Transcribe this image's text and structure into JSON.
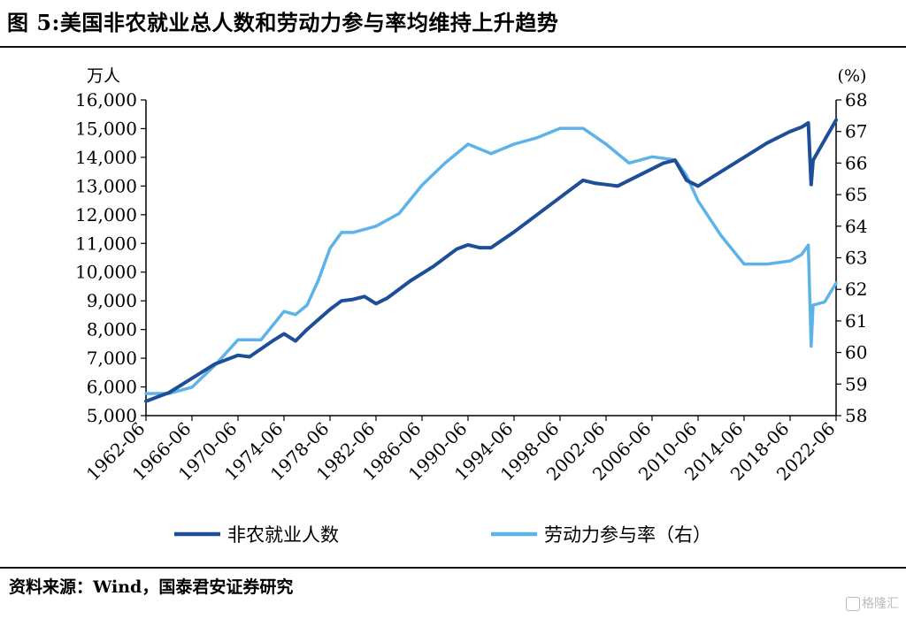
{
  "title": "图 5:美国非农就业总人数和劳动力参与率均维持上升趋势",
  "source": "资料来源：Wind，国泰君安证券研究",
  "watermark": "格隆汇",
  "chart_data": {
    "type": "line",
    "title": "图 5:美国非农就业总人数和劳动力参与率均维持上升趋势",
    "y_left": {
      "unit_label": "万人",
      "range": [
        5000,
        16000
      ],
      "ticks": [
        5000,
        6000,
        7000,
        8000,
        9000,
        10000,
        11000,
        12000,
        13000,
        14000,
        15000,
        16000
      ],
      "tick_labels": [
        "5,000",
        "6,000",
        "7,000",
        "8,000",
        "9,000",
        "10,000",
        "11,000",
        "12,000",
        "13,000",
        "14,000",
        "15,000",
        "16,000"
      ]
    },
    "y_right": {
      "unit_label": "(%)",
      "range": [
        58,
        68
      ],
      "ticks": [
        58,
        59,
        60,
        61,
        62,
        63,
        64,
        65,
        66,
        67,
        68
      ],
      "tick_labels": [
        "58",
        "59",
        "60",
        "61",
        "62",
        "63",
        "64",
        "65",
        "66",
        "67",
        "68"
      ]
    },
    "x_axis": {
      "range": [
        "1962-06",
        "2022-06"
      ],
      "tick_labels": [
        "1962-06",
        "1966-06",
        "1970-06",
        "1974-06",
        "1978-06",
        "1982-06",
        "1986-06",
        "1990-06",
        "1994-06",
        "1998-06",
        "2002-06",
        "2006-06",
        "2010-06",
        "2014-06",
        "2018-06",
        "2022-06"
      ]
    },
    "grid": false,
    "legend": "bottom",
    "series": [
      {
        "name": "非农就业人数",
        "axis": "left",
        "color": "#1f4e99",
        "x": [
          "1962-06",
          "1964-06",
          "1966-06",
          "1968-06",
          "1970-06",
          "1971-06",
          "1973-06",
          "1974-06",
          "1975-06",
          "1976-06",
          "1978-06",
          "1979-06",
          "1980-06",
          "1981-06",
          "1982-06",
          "1983-06",
          "1985-06",
          "1987-06",
          "1989-06",
          "1990-06",
          "1991-06",
          "1992-06",
          "1994-06",
          "1996-06",
          "1998-06",
          "2000-06",
          "2001-06",
          "2002-06",
          "2003-06",
          "2005-06",
          "2007-06",
          "2008-06",
          "2009-06",
          "2010-06",
          "2012-06",
          "2014-06",
          "2016-06",
          "2018-06",
          "2019-06",
          "2020-01",
          "2020-04",
          "2020-06",
          "2021-06",
          "2022-06"
        ],
        "values": [
          5500,
          5800,
          6300,
          6800,
          7100,
          7050,
          7600,
          7850,
          7600,
          8000,
          8700,
          9000,
          9050,
          9150,
          8900,
          9100,
          9700,
          10200,
          10800,
          10950,
          10850,
          10850,
          11400,
          12000,
          12600,
          13200,
          13100,
          13050,
          13000,
          13400,
          13800,
          13900,
          13200,
          13000,
          13500,
          14000,
          14500,
          14900,
          15050,
          15200,
          13050,
          13900,
          14600,
          15300
        ]
      },
      {
        "name": "劳动力参与率（右）",
        "axis": "right",
        "color": "#5db3e8",
        "x": [
          "1962-06",
          "1964-06",
          "1966-06",
          "1968-06",
          "1970-06",
          "1972-06",
          "1974-06",
          "1975-06",
          "1976-06",
          "1977-06",
          "1978-06",
          "1979-06",
          "1980-06",
          "1982-06",
          "1984-06",
          "1986-06",
          "1988-06",
          "1990-06",
          "1992-06",
          "1994-06",
          "1996-06",
          "1998-06",
          "2000-06",
          "2002-06",
          "2004-06",
          "2006-06",
          "2008-06",
          "2009-06",
          "2010-06",
          "2012-06",
          "2014-06",
          "2016-06",
          "2018-06",
          "2019-06",
          "2020-01",
          "2020-04",
          "2020-06",
          "2021-06",
          "2022-06"
        ],
        "values": [
          58.7,
          58.7,
          58.9,
          59.6,
          60.4,
          60.4,
          61.3,
          61.2,
          61.5,
          62.3,
          63.3,
          63.8,
          63.8,
          64.0,
          64.4,
          65.3,
          66.0,
          66.6,
          66.3,
          66.6,
          66.8,
          67.1,
          67.1,
          66.6,
          66.0,
          66.2,
          66.1,
          65.6,
          64.8,
          63.7,
          62.8,
          62.8,
          62.9,
          63.1,
          63.4,
          60.2,
          61.5,
          61.6,
          62.2
        ]
      }
    ]
  }
}
